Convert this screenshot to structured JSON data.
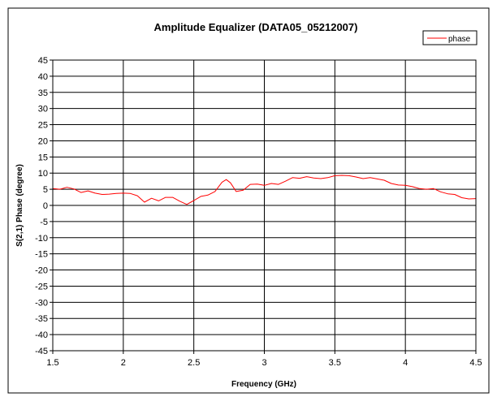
{
  "chart_data": {
    "type": "line",
    "title": "Amplitude Equalizer (DATA05_05212007)",
    "xlabel": "Frequency (GHz)",
    "ylabel": "S(2,1) Phase (degree)",
    "xlim": [
      1.5,
      4.5
    ],
    "ylim": [
      -45,
      45
    ],
    "x_ticks": [
      "1.5",
      "2",
      "2.5",
      "3",
      "3.5",
      "4",
      "4.5"
    ],
    "y_ticks": [
      "45",
      "40",
      "35",
      "30",
      "25",
      "20",
      "15",
      "10",
      "5",
      "0",
      "-5",
      "-10",
      "-15",
      "-20",
      "-25",
      "-30",
      "-35",
      "-40",
      "-45"
    ],
    "grid": true,
    "legend_position": "top-right",
    "series": [
      {
        "name": "phase",
        "color": "#ff0000",
        "x": [
          1.5,
          1.55,
          1.6,
          1.65,
          1.7,
          1.75,
          1.8,
          1.85,
          1.9,
          1.95,
          2.0,
          2.05,
          2.1,
          2.15,
          2.2,
          2.25,
          2.3,
          2.35,
          2.4,
          2.45,
          2.5,
          2.55,
          2.6,
          2.65,
          2.7,
          2.73,
          2.76,
          2.8,
          2.85,
          2.9,
          2.95,
          3.0,
          3.05,
          3.1,
          3.15,
          3.2,
          3.25,
          3.3,
          3.35,
          3.4,
          3.45,
          3.5,
          3.55,
          3.6,
          3.65,
          3.7,
          3.75,
          3.8,
          3.85,
          3.9,
          3.95,
          4.0,
          4.05,
          4.1,
          4.15,
          4.2,
          4.25,
          4.3,
          4.35,
          4.4,
          4.45,
          4.5
        ],
        "y": [
          5.2,
          5.0,
          5.6,
          5.1,
          4.0,
          4.5,
          3.8,
          3.4,
          3.5,
          3.7,
          3.8,
          3.7,
          3.0,
          1.0,
          2.2,
          1.4,
          2.5,
          2.5,
          1.3,
          0.3,
          1.5,
          2.8,
          3.2,
          4.3,
          7.2,
          8.0,
          7.0,
          4.3,
          4.7,
          6.5,
          6.6,
          6.2,
          6.8,
          6.5,
          7.5,
          8.6,
          8.4,
          8.9,
          8.5,
          8.3,
          8.6,
          9.2,
          9.3,
          9.2,
          8.8,
          8.3,
          8.6,
          8.2,
          7.8,
          6.8,
          6.3,
          6.2,
          5.8,
          5.2,
          5.0,
          5.2,
          4.2,
          3.6,
          3.4,
          2.4,
          2.0,
          2.1
        ]
      }
    ]
  }
}
